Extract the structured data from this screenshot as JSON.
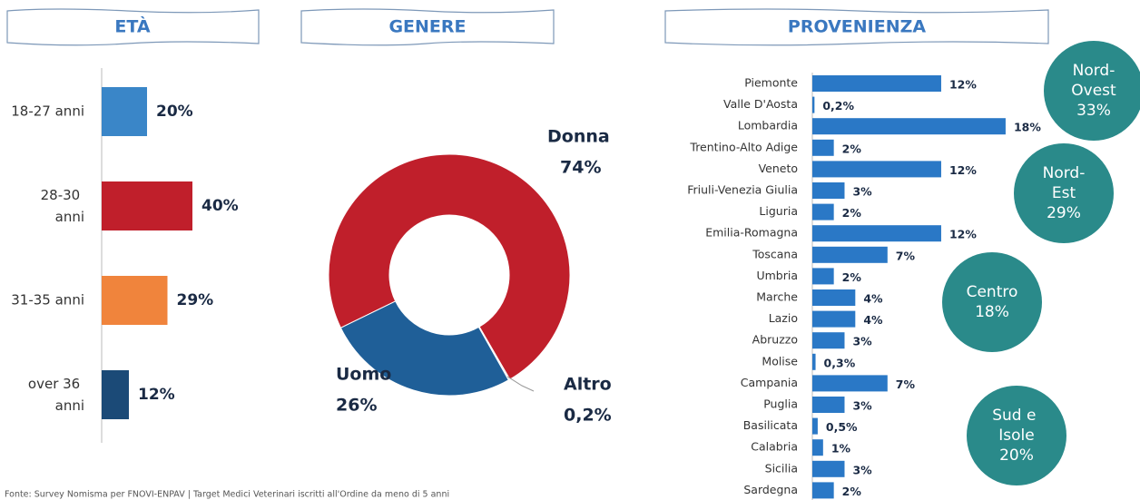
{
  "chart_data": [
    {
      "type": "hbar",
      "title": "ETÀ",
      "categories": [
        "18-27 anni",
        "28-30 anni",
        "31-35 anni",
        "over 36 anni"
      ],
      "values": [
        20,
        40,
        29,
        12
      ],
      "value_labels": [
        "20%",
        "40%",
        "29%",
        "12%"
      ],
      "colors": [
        "#3a86c8",
        "#c01f2b",
        "#f0843c",
        "#1b4a77"
      ]
    },
    {
      "type": "donut",
      "title": "GENERE",
      "categories": [
        "Donna",
        "Altro",
        "Uomo"
      ],
      "values": [
        74,
        0.2,
        26
      ],
      "value_labels": [
        "74%",
        "0,2%",
        "26%"
      ],
      "colors": [
        "#c01f2b",
        "#e6e6e6",
        "#1f5f98"
      ]
    },
    {
      "type": "hbar",
      "title": "PROVENIENZA",
      "categories": [
        "Piemonte",
        "Valle D'Aosta",
        "Lombardia",
        "Trentino-Alto Adige",
        "Veneto",
        "Friuli-Venezia Giulia",
        "Liguria",
        "Emilia-Romagna",
        "Toscana",
        "Umbria",
        "Marche",
        "Lazio",
        "Abruzzo",
        "Molise",
        "Campania",
        "Puglia",
        "Basilicata",
        "Calabria",
        "Sicilia",
        "Sardegna"
      ],
      "values": [
        12,
        0.2,
        18,
        2,
        12,
        3,
        2,
        12,
        7,
        2,
        4,
        4,
        3,
        0.3,
        7,
        3,
        0.5,
        1,
        3,
        2
      ],
      "value_labels": [
        "12%",
        "0,2%",
        "18%",
        "2%",
        "12%",
        "3%",
        "2%",
        "12%",
        "7%",
        "2%",
        "4%",
        "4%",
        "3%",
        "0,3%",
        "7%",
        "3%",
        "0,5%",
        "1%",
        "3%",
        "2%"
      ],
      "color": "#2a78c6",
      "groups": [
        {
          "name": "Nord-Ovest",
          "value": 33,
          "value_label": "33%"
        },
        {
          "name": "Nord-Est",
          "value": 29,
          "value_label": "29%"
        },
        {
          "name": "Centro",
          "value": 18,
          "value_label": "18%"
        },
        {
          "name": "Sud e Isole",
          "value": 20,
          "value_label": "20%"
        }
      ],
      "group_color": "#2a8a8a"
    }
  ],
  "source": "Fonte: Survey Nomisma per FNOVI-ENPAV | Target Medici Veterinari iscritti all'Ordine da meno di 5 anni"
}
